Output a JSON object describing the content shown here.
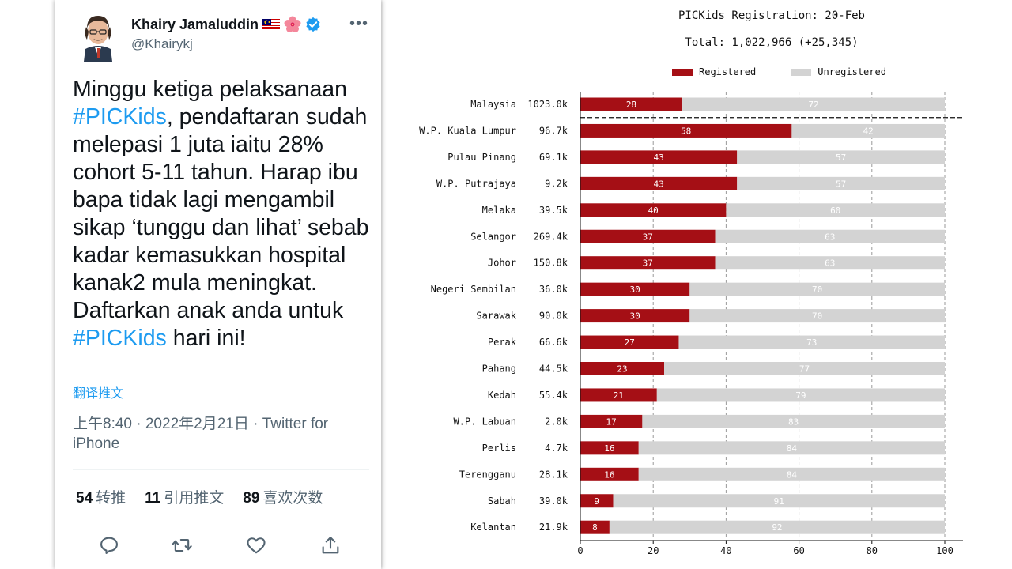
{
  "tweet": {
    "display_name": "Khairy Jamaluddin",
    "handle": "@Khairykj",
    "body_segments": [
      {
        "text": "Minggu ketiga pelaksanaan ",
        "hashtag": false
      },
      {
        "text": "#PICKids",
        "hashtag": true
      },
      {
        "text": ", pendaftaran sudah melepasi 1 juta iaitu 28% cohort 5-11 tahun. Harap ibu bapa tidak lagi mengambil sikap ‘tunggu dan lihat’ sebab kadar kemasukkan hospital kanak2 mula meningkat. Daftarkan anak anda untuk ",
        "hashtag": false
      },
      {
        "text": "#PICKids",
        "hashtag": true
      },
      {
        "text": " hari ini!",
        "hashtag": false
      }
    ],
    "translate_label": "翻译推文",
    "timestamp": "上午8:40 · 2022年2月21日 · Twitter for iPhone",
    "stats": [
      {
        "count": "54",
        "label": "转推"
      },
      {
        "count": "11",
        "label": "引用推文"
      },
      {
        "count": "89",
        "label": "喜欢次数"
      }
    ],
    "actions": [
      "reply-icon",
      "retweet-icon",
      "like-icon",
      "share-icon"
    ],
    "colors": {
      "link": "#1d9bf0",
      "text": "#0f1419",
      "muted": "#536471"
    }
  },
  "chart_data": {
    "type": "bar",
    "title": "PICKids Registration: 20-Feb",
    "subtitle": "Total: 1,022,966 (+25,345)",
    "legend": [
      "Registered",
      "Unregistered"
    ],
    "legend_placement": "top",
    "colors": {
      "registered": "#a50f15",
      "unregistered": "#d3d3d3"
    },
    "categories": [
      "Malaysia",
      "W.P. Kuala Lumpur",
      "Pulau Pinang",
      "W.P. Putrajaya",
      "Melaka",
      "Selangor",
      "Johor",
      "Negeri Sembilan",
      "Sarawak",
      "Perak",
      "Pahang",
      "Kedah",
      "W.P. Labuan",
      "Perlis",
      "Terengganu",
      "Sabah",
      "Kelantan"
    ],
    "totals": [
      "1023.0k",
      "96.7k",
      "69.1k",
      "9.2k",
      "39.5k",
      "269.4k",
      "150.8k",
      "36.0k",
      "90.0k",
      "66.6k",
      "44.5k",
      "55.4k",
      "2.0k",
      "4.7k",
      "28.1k",
      "39.0k",
      "21.9k"
    ],
    "series": [
      {
        "name": "Registered",
        "values": [
          28,
          58,
          43,
          43,
          40,
          37,
          37,
          30,
          30,
          27,
          23,
          21,
          17,
          16,
          16,
          9,
          8
        ]
      },
      {
        "name": "Unregistered",
        "values": [
          72,
          42,
          57,
          57,
          60,
          63,
          63,
          70,
          70,
          73,
          77,
          79,
          83,
          84,
          84,
          91,
          92
        ]
      }
    ],
    "xlim": [
      0,
      100
    ],
    "xticks": [
      0,
      20,
      40,
      60,
      80,
      100
    ],
    "grid": "vertical dashed"
  }
}
